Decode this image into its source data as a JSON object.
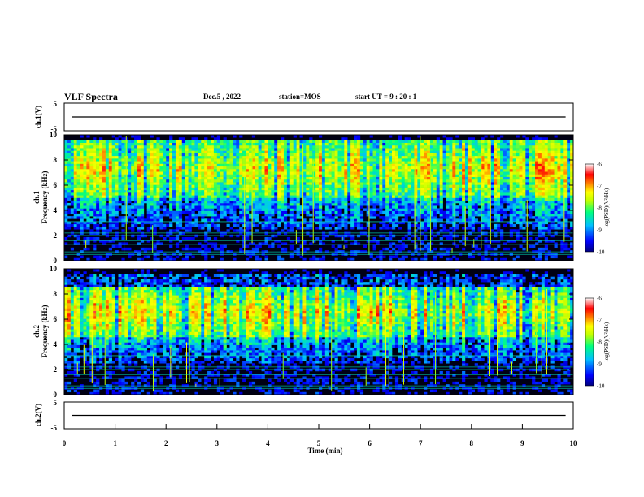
{
  "header": {
    "title": "VLF Spectra",
    "date": "Dec.5 , 2022",
    "station": "station=MOS",
    "start_ut": "start UT = 9 : 20 : 1"
  },
  "colors": {
    "spectrogram_background": "#000014",
    "colormap": [
      "#000080",
      "#0000ff",
      "#00c0ff",
      "#00ff80",
      "#c0ff00",
      "#ffff00",
      "#ff8000",
      "#ff0000",
      "#ffffff"
    ]
  },
  "chart_data": [
    {
      "type": "line",
      "name": "ch1_waveform",
      "ylabel": "ch.1(V)",
      "ylim": [
        -5,
        5
      ],
      "yticks": [
        "5",
        "-5"
      ],
      "description_values": "flat trace near 0 V across 0-10 min"
    },
    {
      "type": "heatmap",
      "name": "ch1_spectrogram",
      "ylabel": "ch.1\nFrequency (kHz)",
      "ylabel_line1": "ch.1",
      "ylabel_line2": "Frequency (kHz)",
      "ylim": [
        0,
        10
      ],
      "yticks": [
        "0",
        "2",
        "4",
        "6",
        "8",
        "10"
      ],
      "xlim": [
        0,
        10
      ],
      "intense_band_khz": [
        5,
        9.5
      ],
      "colorbar": {
        "label": "log(PSD)(V²/Hz)",
        "ticks": [
          "-6",
          "-7",
          "-8",
          "-9",
          "-10"
        ],
        "range": [
          -10,
          -6
        ]
      }
    },
    {
      "type": "heatmap",
      "name": "ch2_spectrogram",
      "ylabel_line1": "ch.2",
      "ylabel_line2": "Frequency (kHz)",
      "ylim": [
        0,
        10
      ],
      "yticks": [
        "0",
        "2",
        "4",
        "6",
        "8",
        "10"
      ],
      "xlim": [
        0,
        10
      ],
      "intense_band_khz": [
        4.5,
        8.5
      ],
      "colorbar": {
        "label": "log(PSD)(V²/Hz)",
        "ticks": [
          "-6",
          "-7",
          "-8",
          "-9",
          "-10"
        ],
        "range": [
          -10,
          -6
        ]
      }
    },
    {
      "type": "line",
      "name": "ch2_waveform",
      "ylabel": "ch.2(V)",
      "ylim": [
        -5,
        5
      ],
      "yticks": [
        "5",
        "-5"
      ]
    }
  ],
  "xaxis": {
    "label": "Time (min)",
    "ticks": [
      "0",
      "1",
      "2",
      "3",
      "4",
      "5",
      "6",
      "7",
      "8",
      "9",
      "10"
    ],
    "range": [
      0,
      10
    ]
  }
}
